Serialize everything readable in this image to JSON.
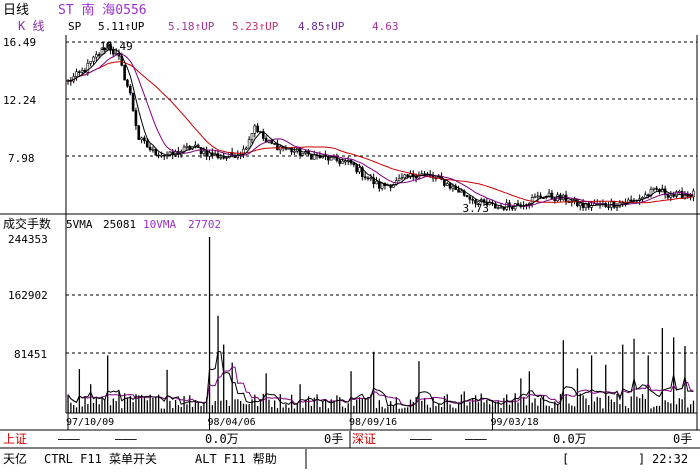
{
  "header": {
    "period": "日线",
    "stock": "ST 南 海0556",
    "kline_label": "K  线",
    "sp_label": "SP",
    "ma_values": [
      "5.11↑UP",
      "5.18↑UP",
      "5.23↑UP",
      "4.85↑UP",
      "4.63"
    ]
  },
  "volume_header": {
    "title": "成交手数",
    "vma5_label": "5VMA",
    "vma5_value": "25081",
    "vma10_label": "10VMA",
    "vma10_value": "27702"
  },
  "status_bar": {
    "sh_label": "上证",
    "sh_dash1": "———",
    "sh_dash2": "———",
    "sh_amount": "0.0万",
    "sh_hands": "0手",
    "sz_label": "深证",
    "sz_dash1": "———",
    "sz_dash2": "———",
    "sz_amount": "0.0万",
    "sz_hands": "0手"
  },
  "bottom_bar": {
    "brand": "天亿",
    "hint1": "CTRL F11 菜单开关",
    "hint2": "ALT F11 帮助",
    "bracket_left": "[",
    "bracket_right": "]",
    "clock": "22:32"
  },
  "colors": {
    "axis": "#000000",
    "candle": "#000000",
    "ma_short": "#000000",
    "ma_mid": "#800080",
    "ma_long": "#c80000",
    "vol_ma5": "#000000",
    "vol_ma10": "#800080",
    "status_red": "#cc0000",
    "title_purple": "#9933cc",
    "kline_purple": "#8833aa"
  },
  "chart_data": [
    {
      "type": "line",
      "name": "price",
      "ylim": [
        3.73,
        16.49
      ],
      "y_ticks": [
        "16.49",
        "12.24",
        "7.98"
      ],
      "annotations": [
        {
          "label": "16.49",
          "x": 14,
          "y": 16.49
        },
        {
          "label": "3.73",
          "x": 150,
          "y": 3.73
        }
      ],
      "anchors": [
        [
          0,
          13.5
        ],
        [
          6,
          14.4
        ],
        [
          10,
          15.4
        ],
        [
          14,
          16.3
        ],
        [
          18,
          15.2
        ],
        [
          22,
          12.5
        ],
        [
          25,
          9.2
        ],
        [
          30,
          8.2
        ],
        [
          36,
          7.9
        ],
        [
          44,
          8.6
        ],
        [
          50,
          8.0
        ],
        [
          56,
          7.8
        ],
        [
          62,
          8.3
        ],
        [
          66,
          10.2
        ],
        [
          70,
          8.9
        ],
        [
          76,
          8.5
        ],
        [
          84,
          8.0
        ],
        [
          92,
          7.7
        ],
        [
          100,
          7.3
        ],
        [
          106,
          6.2
        ],
        [
          110,
          5.6
        ],
        [
          116,
          5.9
        ],
        [
          124,
          6.6
        ],
        [
          132,
          6.0
        ],
        [
          140,
          5.0
        ],
        [
          146,
          4.3
        ],
        [
          152,
          4.0
        ],
        [
          160,
          4.3
        ],
        [
          168,
          4.9
        ],
        [
          176,
          4.6
        ],
        [
          182,
          4.1
        ],
        [
          190,
          4.2
        ],
        [
          200,
          4.5
        ],
        [
          208,
          5.3
        ],
        [
          214,
          4.9
        ],
        [
          220,
          5.0
        ]
      ]
    },
    {
      "type": "bar",
      "name": "volume",
      "ylim": [
        0,
        244353
      ],
      "y_ticks": [
        "244353",
        "162902",
        "81451"
      ],
      "x_ticks": [
        {
          "label": "97/10/09",
          "x": 0
        },
        {
          "label": "98/04/06",
          "x": 50
        },
        {
          "label": "98/09/16",
          "x": 100
        },
        {
          "label": "99/03/18",
          "x": 150
        }
      ],
      "spikes": [
        [
          4,
          61000
        ],
        [
          8,
          40000
        ],
        [
          14,
          80000
        ],
        [
          18,
          30000
        ],
        [
          35,
          60000
        ],
        [
          50,
          244353
        ],
        [
          53,
          135000
        ],
        [
          55,
          95000
        ],
        [
          58,
          70000
        ],
        [
          70,
          55000
        ],
        [
          82,
          40000
        ],
        [
          100,
          58000
        ],
        [
          108,
          85000
        ],
        [
          124,
          72000
        ],
        [
          140,
          30000
        ],
        [
          160,
          48000
        ],
        [
          163,
          58000
        ],
        [
          175,
          101000
        ],
        [
          180,
          62000
        ],
        [
          185,
          80000
        ],
        [
          190,
          67000
        ],
        [
          196,
          95000
        ],
        [
          200,
          103000
        ],
        [
          205,
          80000
        ],
        [
          210,
          118000
        ],
        [
          214,
          105000
        ],
        [
          218,
          93000
        ]
      ]
    }
  ]
}
